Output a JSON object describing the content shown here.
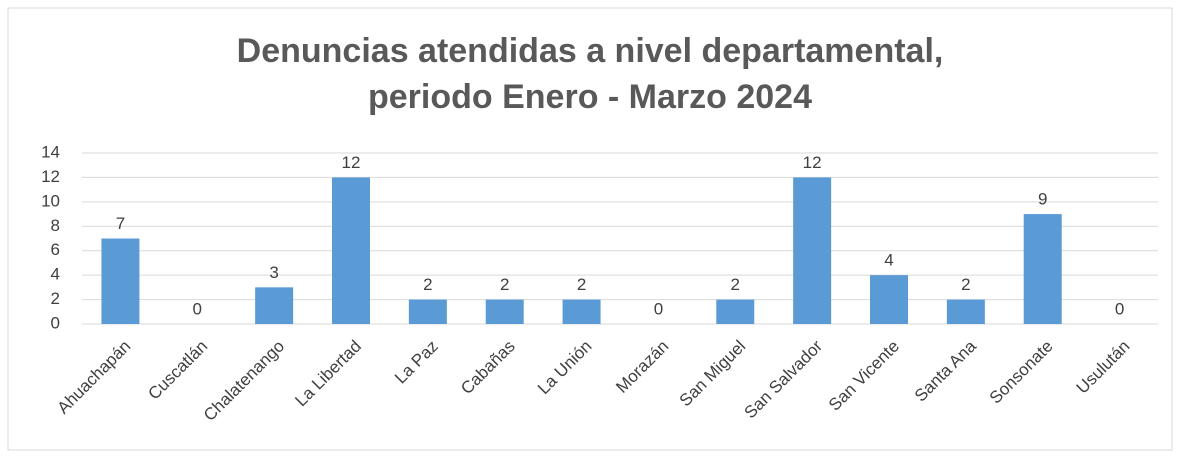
{
  "chart_data": {
    "type": "bar",
    "title": "Denuncias atendidas a nivel departamental, periodo Enero - Marzo 2024",
    "categories": [
      "Ahuachapán",
      "Cuscatlán",
      "Chalatenango",
      "La Libertad",
      "La Paz",
      "Cabañas",
      "La Unión",
      "Morazán",
      "San Miguel",
      "San Salvador",
      "San Vicente",
      "Santa Ana",
      "Sonsonate",
      "Usulután"
    ],
    "values": [
      7,
      0,
      3,
      12,
      2,
      2,
      2,
      0,
      2,
      12,
      4,
      2,
      9,
      0
    ],
    "color": "#5b9bd5",
    "ylim": [
      0,
      14
    ],
    "yticks": [
      0,
      2,
      4,
      6,
      8,
      10,
      12,
      14
    ],
    "grid": true
  }
}
